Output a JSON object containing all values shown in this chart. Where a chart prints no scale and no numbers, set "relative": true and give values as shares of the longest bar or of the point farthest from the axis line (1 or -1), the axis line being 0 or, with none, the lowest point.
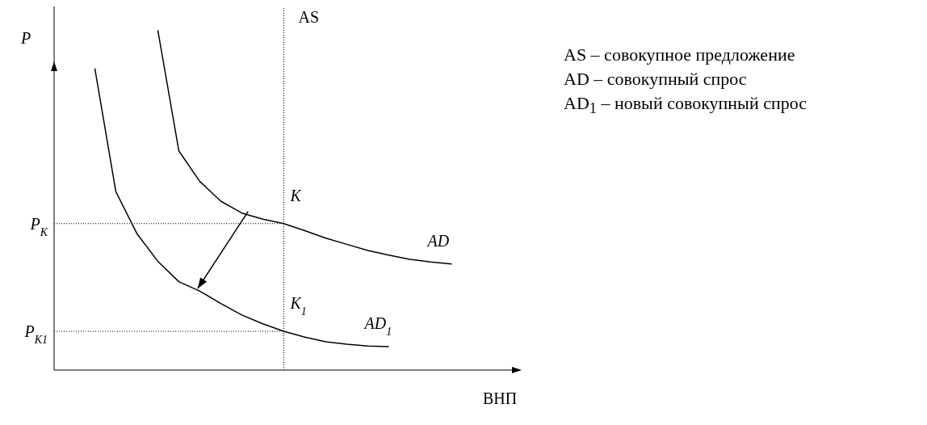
{
  "chart_data": {
    "type": "line",
    "relative": true,
    "marker": "none",
    "line_style": "solid",
    "xlabel": "ВНП",
    "ylabel": "P",
    "categories": [
      null,
      null,
      null,
      null,
      null,
      null,
      null,
      null,
      null,
      null,
      null,
      null,
      null,
      null,
      null,
      null,
      null,
      null
    ],
    "series": [
      {
        "name": "AD",
        "color": "#000000",
        "values": [
          null,
          null,
          null,
          1,
          0.645,
          0.555,
          0.497,
          0.462,
          0.444,
          0.431,
          0.41,
          0.388,
          0.37,
          0.352,
          0.338,
          0.326,
          0.318,
          0.312
        ]
      },
      {
        "name": "AD$_{1}$",
        "color": "#000000",
        "values": [
          0.888,
          0.525,
          0.402,
          0.32,
          0.26,
          0.232,
          0.196,
          0.162,
          0.136,
          0.114,
          0.097,
          0.083,
          0.076,
          0.071,
          0.069,
          null,
          null,
          null
        ]
      }
    ],
    "ref_lines": [
      {
        "axis": "y",
        "value": 0.431,
        "label": "P$_{K}$",
        "line_style": "dotted",
        "color": "#000000"
      },
      {
        "axis": "y",
        "value": 0.114,
        "label": "P$_{K1}$",
        "line_style": "dotted",
        "color": "#000000"
      }
    ],
    "annotations": [
      {
        "text": "K",
        "y": 0.431
      },
      {
        "text": "K$_{1}$",
        "y": 0.114
      },
      "AS",
      "AS – совокупное предложение",
      "AD – совокупный спрос",
      "AD$_{1}$ – новый совокупный спрос"
    ]
  }
}
